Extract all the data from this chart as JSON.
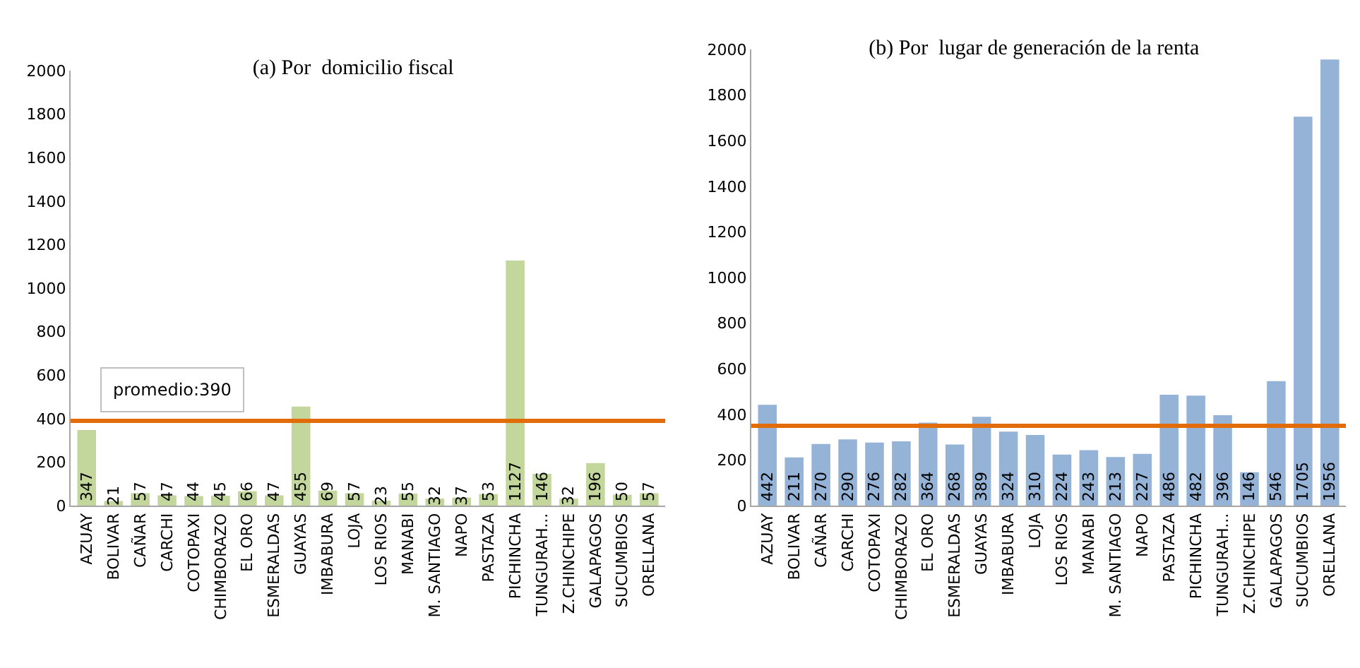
{
  "chart_data": [
    {
      "type": "bar",
      "title": "(a) Por  domicilio fiscal",
      "categories": [
        "AZUAY",
        "BOLIVAR",
        "CAÑAR",
        "CARCHI",
        "COTOPAXI",
        "CHIMBORAZO",
        "EL ORO",
        "ESMERALDAS",
        "GUAYAS",
        "IMBABURA",
        "LOJA",
        "LOS RIOS",
        "MANABI",
        "M. SANTIAGO",
        "NAPO",
        "PASTAZA",
        "PICHINCHA",
        "TUNGURAH...",
        "Z.CHINCHIPE",
        "GALAPAGOS",
        "SUCUMBIOS",
        "ORELLANA"
      ],
      "values": [
        347,
        21,
        57,
        47,
        44,
        45,
        66,
        47,
        455,
        69,
        57,
        23,
        55,
        32,
        37,
        53,
        1127,
        146,
        32,
        196,
        50,
        57
      ],
      "color": "#c3d69b",
      "ylim": [
        0,
        2000
      ],
      "yticks": [
        0,
        200,
        400,
        600,
        800,
        1000,
        1200,
        1400,
        1600,
        1800,
        2000
      ],
      "grid": false,
      "data_labels": true,
      "ref_lines": [
        {
          "axis": "y",
          "value": 390,
          "label": "promedio:390",
          "color": "#e36c0a"
        }
      ]
    },
    {
      "type": "bar",
      "title": "(b) Por  lugar de generación de la renta",
      "categories": [
        "AZUAY",
        "BOLIVAR",
        "CAÑAR",
        "CARCHI",
        "COTOPAXI",
        "CHIMBORAZO",
        "EL ORO",
        "ESMERALDAS",
        "GUAYAS",
        "IMBABURA",
        "LOJA",
        "LOS RIOS",
        "MANABI",
        "M. SANTIAGO",
        "NAPO",
        "PASTAZA",
        "PICHINCHA",
        "TUNGURAH...",
        "Z.CHINCHIPE",
        "GALAPAGOS",
        "SUCUMBIOS",
        "ORELLANA"
      ],
      "values": [
        442,
        211,
        270,
        290,
        276,
        282,
        364,
        268,
        389,
        324,
        310,
        224,
        243,
        213,
        227,
        486,
        482,
        396,
        146,
        546,
        1705,
        1956
      ],
      "color": "#95b3d7",
      "ylim": [
        0,
        2000
      ],
      "yticks": [
        0,
        200,
        400,
        600,
        800,
        1000,
        1200,
        1400,
        1600,
        1800,
        2000
      ],
      "grid": false,
      "data_labels": true,
      "ref_lines": [
        {
          "axis": "y",
          "value": 350,
          "color": "#e36c0a"
        }
      ]
    }
  ]
}
